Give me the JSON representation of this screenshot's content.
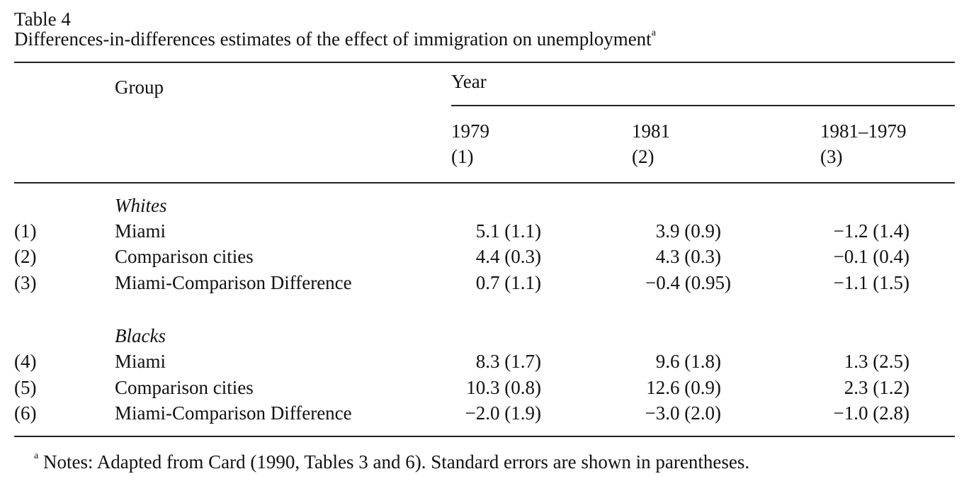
{
  "table": {
    "label": "Table 4",
    "title": "Differences-in-differences estimates of the effect of immigration on unemployment",
    "title_marker": "a",
    "header": {
      "group": "Group",
      "year": "Year",
      "columns": [
        {
          "year": "1979",
          "index": "(1)"
        },
        {
          "year": "1981",
          "index": "(2)"
        },
        {
          "year": "1981–1979",
          "index": "(3)"
        }
      ]
    },
    "sections": [
      {
        "title": "Whites",
        "rows": [
          {
            "num": "(1)",
            "group": "Miami",
            "c1": "5.1 (1.1)",
            "c2": "3.9 (0.9)",
            "c3": "−1.2 (1.4)"
          },
          {
            "num": "(2)",
            "group": "Comparison cities",
            "c1": "4.4 (0.3)",
            "c2": "4.3 (0.3)",
            "c3": "−0.1 (0.4)"
          },
          {
            "num": "(3)",
            "group": "Miami-Comparison Difference",
            "c1": "0.7 (1.1)",
            "c2": "−0.4 (0.95)",
            "c3": "−1.1 (1.5)"
          }
        ]
      },
      {
        "title": "Blacks",
        "rows": [
          {
            "num": "(4)",
            "group": "Miami",
            "c1": "8.3 (1.7)",
            "c2": "9.6 (1.8)",
            "c3": "1.3 (2.5)"
          },
          {
            "num": "(5)",
            "group": "Comparison cities",
            "c1": "10.3 (0.8)",
            "c2": "12.6 (0.9)",
            "c3": "2.3 (1.2)"
          },
          {
            "num": "(6)",
            "group": "Miami-Comparison Difference",
            "c1": "−2.0 (1.9)",
            "c2": "−3.0 (2.0)",
            "c3": "−1.0 (2.8)"
          }
        ]
      }
    ],
    "note_marker": "a",
    "note": "Notes: Adapted from Card (1990, Tables 3 and 6). Standard errors are shown in parentheses."
  }
}
